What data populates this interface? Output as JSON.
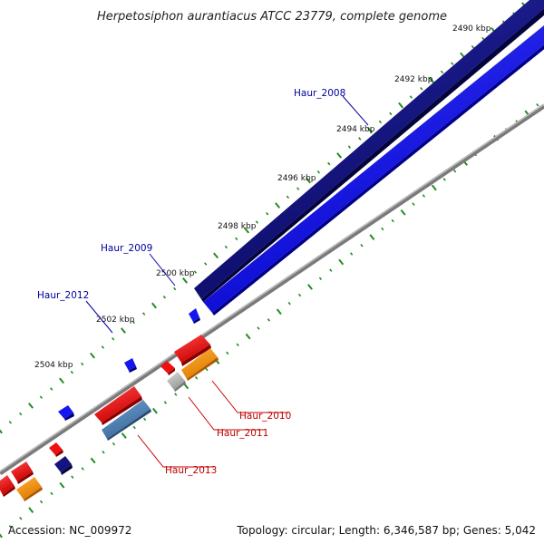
{
  "title": "Herpetosiphon aurantiacus ATCC 23779, complete genome",
  "accession": "Accession: NC_009972",
  "summary": "Topology: circular; Length: 6,346,587 bp; Genes: 5,042",
  "ticks": [
    "2490 kbp",
    "2492 kbp",
    "2494 kbp",
    "2496 kbp",
    "2498 kbp",
    "2500 kbp",
    "2502 kbp",
    "2504 kbp"
  ],
  "genes": [
    {
      "label": "Haur_2008",
      "strand": "forward",
      "color": "#00008b"
    },
    {
      "label": "Haur_2009",
      "strand": "forward",
      "color": "#0000cd"
    },
    {
      "label": "Haur_2012",
      "strand": "forward",
      "color": "#0000cd"
    },
    {
      "label": "Haur_2010",
      "strand": "reverse",
      "color": "#cc0000"
    },
    {
      "label": "Haur_2011",
      "strand": "reverse",
      "color": "#cc0000"
    },
    {
      "label": "Haur_2013",
      "strand": "reverse",
      "color": "#cc0000"
    }
  ],
  "colors": {
    "forward_dark": "#0a0a7a",
    "forward_light": "#1a1aff",
    "reverse_red": "#ee1111",
    "reverse_orange": "#ff9900",
    "reverse_steel": "#4a7fb5",
    "gray_gene": "#bbbbbb",
    "backbone": "#888888",
    "tick": "#228b22",
    "label_forward": "#000099",
    "label_reverse": "#bb0000"
  }
}
